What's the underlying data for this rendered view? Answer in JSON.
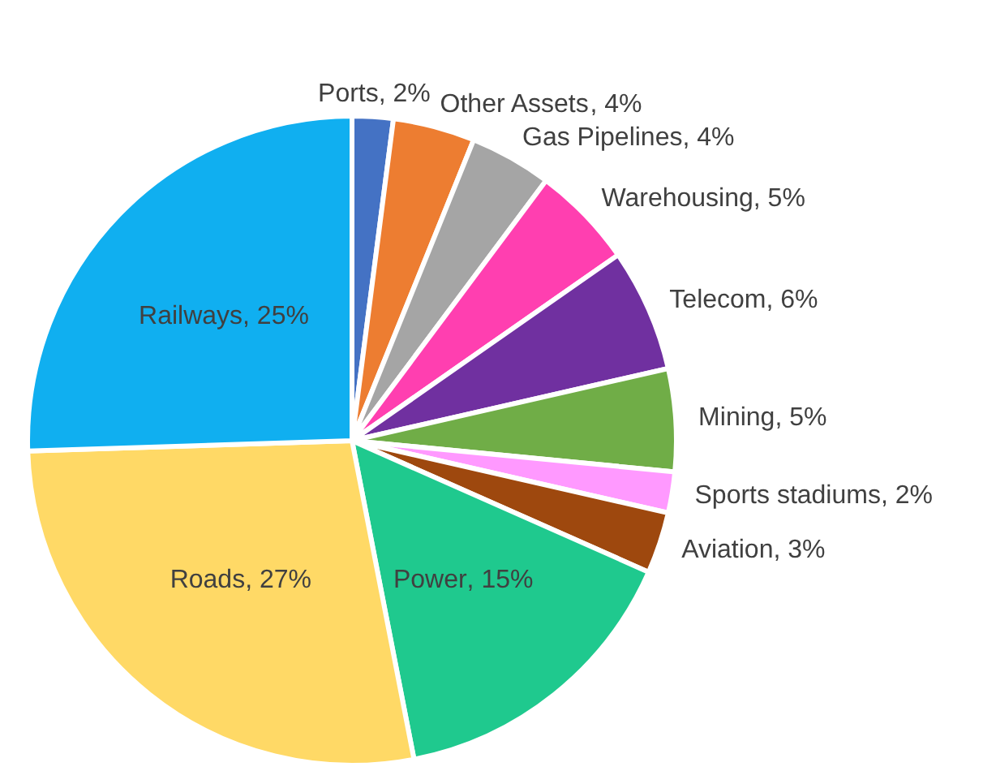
{
  "chart_data": {
    "type": "pie",
    "categories": [
      "Ports",
      "Other Assets",
      "Gas Pipelines",
      "Warehousing",
      "Telecom",
      "Mining",
      "Sports stadiums",
      "Aviation",
      "Power",
      "Roads",
      "Railways"
    ],
    "values": [
      2,
      4,
      4,
      5,
      6,
      5,
      2,
      3,
      15,
      27,
      25
    ],
    "value_labels": [
      ", 2%",
      ", 4%",
      ", 4%",
      ", 5%",
      ", 6%",
      ", 5%",
      ", 2%",
      ", 3%",
      ", 15%",
      ", 27%",
      ", 25%"
    ],
    "colors": [
      "#4472c4",
      "#ed7d31",
      "#a5a5a5",
      "#ff3fb0",
      "#7030a0",
      "#70ad47",
      "#ff99ff",
      "#9e480e",
      "#1fc98e",
      "#ffd966",
      "#10aff0"
    ],
    "legend": false
  }
}
